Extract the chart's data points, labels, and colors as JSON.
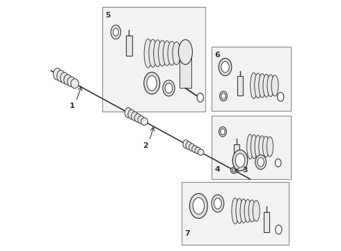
{
  "bg_color": "#ffffff",
  "line_color": "#333333",
  "box_color": "#f2f2f2",
  "box_edge_color": "#888888",
  "figsize": [
    4.9,
    3.6
  ],
  "dpi": 100
}
